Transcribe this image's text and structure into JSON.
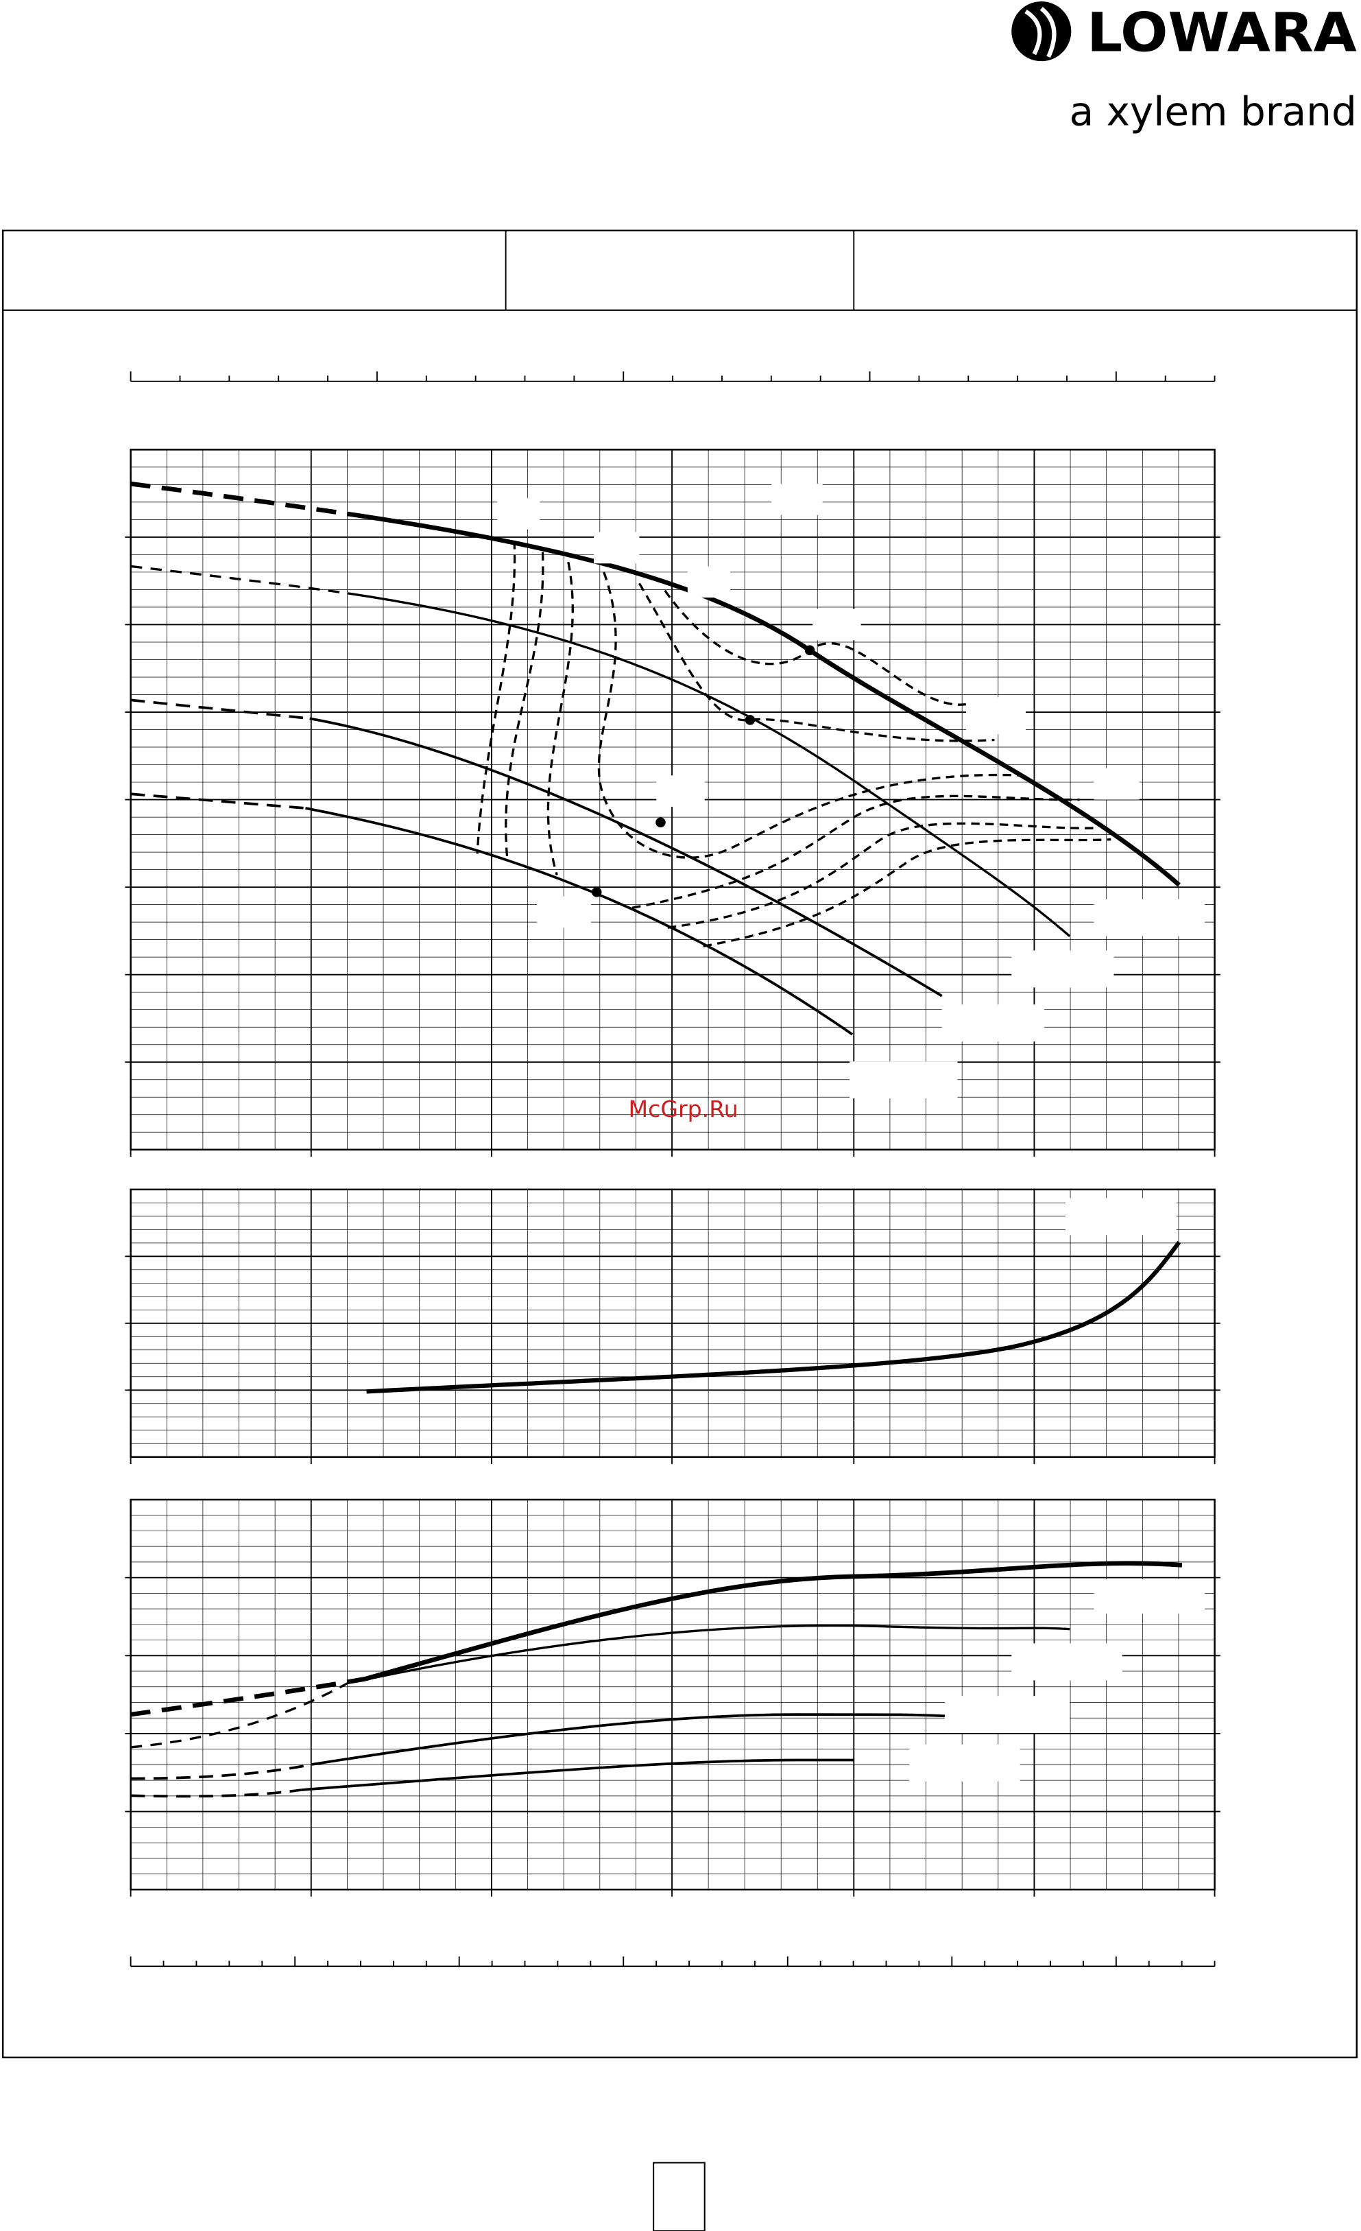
{
  "header": {
    "brand": "LOWARA",
    "tagline": "a xylem brand"
  },
  "watermark": "McGrp.Ru"
}
